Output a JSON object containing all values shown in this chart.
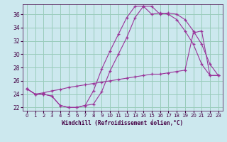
{
  "xlabel": "Windchill (Refroidissement éolien,°C)",
  "bg_color": "#cce8ee",
  "grid_color": "#99ccbb",
  "line_color": "#993399",
  "xlim": [
    -0.5,
    23.5
  ],
  "ylim": [
    21.5,
    37.5
  ],
  "xticks": [
    0,
    1,
    2,
    3,
    4,
    5,
    6,
    7,
    8,
    9,
    10,
    11,
    12,
    13,
    14,
    15,
    16,
    17,
    18,
    19,
    20,
    21,
    22,
    23
  ],
  "yticks": [
    22,
    24,
    26,
    28,
    30,
    32,
    34,
    36
  ],
  "line1_x": [
    0,
    1,
    2,
    3,
    4,
    5,
    6,
    7,
    8,
    9,
    10,
    11,
    12,
    13,
    14,
    15,
    16,
    17,
    18,
    19,
    20,
    21,
    22,
    23
  ],
  "line1_y": [
    24.8,
    24.0,
    24.0,
    23.7,
    22.3,
    22.0,
    22.0,
    22.3,
    22.5,
    24.4,
    27.5,
    30.0,
    32.5,
    35.5,
    37.2,
    37.2,
    36.0,
    36.2,
    36.0,
    35.2,
    33.5,
    31.5,
    28.5,
    26.8
  ],
  "line2_x": [
    0,
    1,
    2,
    3,
    4,
    5,
    6,
    7,
    8,
    9,
    10,
    11,
    12,
    13,
    14,
    15,
    16,
    17,
    18,
    19,
    20,
    21,
    22,
    23
  ],
  "line2_y": [
    24.8,
    24.0,
    24.0,
    23.7,
    22.3,
    22.0,
    22.0,
    22.3,
    24.5,
    27.8,
    30.5,
    33.0,
    35.5,
    37.2,
    37.2,
    36.0,
    36.2,
    36.0,
    35.2,
    33.5,
    31.5,
    28.5,
    26.8,
    26.8
  ],
  "line3_x": [
    0,
    1,
    2,
    3,
    4,
    5,
    6,
    7,
    8,
    9,
    10,
    11,
    12,
    13,
    14,
    15,
    16,
    17,
    18,
    19,
    20,
    21,
    22,
    23
  ],
  "line3_y": [
    24.8,
    24.0,
    24.2,
    24.5,
    24.7,
    25.0,
    25.2,
    25.4,
    25.6,
    25.8,
    26.0,
    26.2,
    26.4,
    26.6,
    26.8,
    27.0,
    27.0,
    27.2,
    27.4,
    27.6,
    33.2,
    33.5,
    26.8,
    26.8
  ],
  "marker": "+"
}
